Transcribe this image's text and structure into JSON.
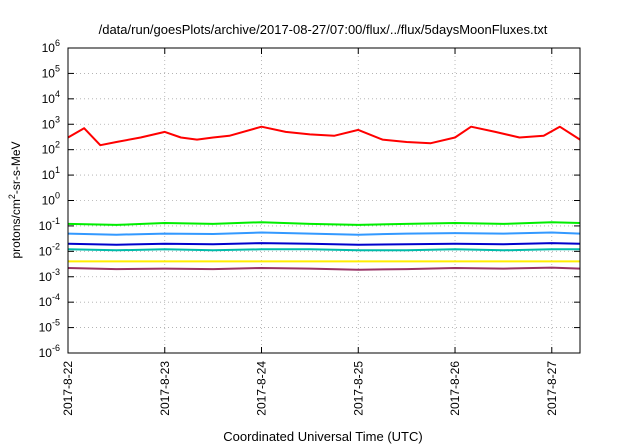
{
  "chart_data": {
    "type": "line",
    "title": "/data/run/goesPlots/archive/2017-08-27/07:00/flux/../flux/5daysMoonFluxes.txt",
    "xlabel": "Coordinated Universal Time (UTC)",
    "ylabel": {
      "prefix": "protons/cm",
      "superscript": "2",
      "suffix": "-sr-s-MeV"
    },
    "yscale": "log",
    "ylim": [
      "1e-6",
      "1e6"
    ],
    "y_ticks": [
      {
        "base": "10",
        "exp": "-6"
      },
      {
        "base": "10",
        "exp": "-5"
      },
      {
        "base": "10",
        "exp": "-4"
      },
      {
        "base": "10",
        "exp": "-3"
      },
      {
        "base": "10",
        "exp": "-2"
      },
      {
        "base": "10",
        "exp": "-1"
      },
      {
        "base": "10",
        "exp": "0"
      },
      {
        "base": "10",
        "exp": "1"
      },
      {
        "base": "10",
        "exp": "2"
      },
      {
        "base": "10",
        "exp": "3"
      },
      {
        "base": "10",
        "exp": "4"
      },
      {
        "base": "10",
        "exp": "5"
      },
      {
        "base": "10",
        "exp": "6"
      }
    ],
    "xlim": [
      "2017-08-22",
      "2017-08-27 07:00"
    ],
    "x_ticks": [
      "2017-8-22",
      "2017-8-23",
      "2017-8-24",
      "2017-8-25",
      "2017-8-26",
      "2017-8-27"
    ],
    "grid": true,
    "series": [
      {
        "color": "#ff0000",
        "x": [
          "2017-08-22 00:00",
          "2017-08-22 04:00",
          "2017-08-22 08:00",
          "2017-08-22 12:00",
          "2017-08-22 18:00",
          "2017-08-23 00:00",
          "2017-08-23 04:00",
          "2017-08-23 08:00",
          "2017-08-23 12:00",
          "2017-08-23 16:00",
          "2017-08-24 00:00",
          "2017-08-24 06:00",
          "2017-08-24 12:00",
          "2017-08-24 18:00",
          "2017-08-25 00:00",
          "2017-08-25 06:00",
          "2017-08-25 12:00",
          "2017-08-25 18:00",
          "2017-08-26 00:00",
          "2017-08-26 04:00",
          "2017-08-26 10:00",
          "2017-08-26 16:00",
          "2017-08-26 22:00",
          "2017-08-27 02:00",
          "2017-08-27 07:00"
        ],
        "values": [
          300,
          700,
          150,
          200,
          300,
          500,
          300,
          250,
          300,
          350,
          800,
          500,
          400,
          350,
          600,
          250,
          200,
          180,
          300,
          800,
          500,
          300,
          350,
          800,
          250
        ]
      },
      {
        "color": "#00ee00",
        "x": [
          "2017-08-22 00:00",
          "2017-08-22 12:00",
          "2017-08-23 00:00",
          "2017-08-23 12:00",
          "2017-08-24 00:00",
          "2017-08-24 12:00",
          "2017-08-25 00:00",
          "2017-08-25 12:00",
          "2017-08-26 00:00",
          "2017-08-26 12:00",
          "2017-08-27 00:00",
          "2017-08-27 07:00"
        ],
        "values": [
          0.12,
          0.11,
          0.13,
          0.12,
          0.14,
          0.12,
          0.11,
          0.12,
          0.13,
          0.12,
          0.14,
          0.13
        ]
      },
      {
        "color": "#3399ff",
        "x": [
          "2017-08-22 00:00",
          "2017-08-22 12:00",
          "2017-08-23 00:00",
          "2017-08-23 12:00",
          "2017-08-24 00:00",
          "2017-08-24 12:00",
          "2017-08-25 00:00",
          "2017-08-25 12:00",
          "2017-08-26 00:00",
          "2017-08-26 12:00",
          "2017-08-27 00:00",
          "2017-08-27 07:00"
        ],
        "values": [
          0.05,
          0.045,
          0.05,
          0.048,
          0.055,
          0.05,
          0.045,
          0.05,
          0.052,
          0.05,
          0.055,
          0.05
        ]
      },
      {
        "color": "#0000cc",
        "x": [
          "2017-08-22 00:00",
          "2017-08-22 12:00",
          "2017-08-23 00:00",
          "2017-08-23 12:00",
          "2017-08-24 00:00",
          "2017-08-24 12:00",
          "2017-08-25 00:00",
          "2017-08-25 12:00",
          "2017-08-26 00:00",
          "2017-08-26 12:00",
          "2017-08-27 00:00",
          "2017-08-27 07:00"
        ],
        "values": [
          0.02,
          0.018,
          0.02,
          0.019,
          0.021,
          0.02,
          0.018,
          0.019,
          0.02,
          0.019,
          0.021,
          0.02
        ]
      },
      {
        "color": "#00bbaa",
        "x": [
          "2017-08-22 00:00",
          "2017-08-22 12:00",
          "2017-08-23 00:00",
          "2017-08-23 12:00",
          "2017-08-24 00:00",
          "2017-08-24 12:00",
          "2017-08-25 00:00",
          "2017-08-25 12:00",
          "2017-08-26 00:00",
          "2017-08-26 12:00",
          "2017-08-27 00:00",
          "2017-08-27 07:00"
        ],
        "values": [
          0.012,
          0.011,
          0.012,
          0.011,
          0.012,
          0.012,
          0.011,
          0.011,
          0.012,
          0.011,
          0.012,
          0.012
        ]
      },
      {
        "color": "#ffee00",
        "x": [
          "2017-08-22 00:00",
          "2017-08-27 07:00"
        ],
        "values": [
          0.004,
          0.004
        ]
      },
      {
        "color": "#993366",
        "x": [
          "2017-08-22 00:00",
          "2017-08-22 12:00",
          "2017-08-23 00:00",
          "2017-08-23 12:00",
          "2017-08-24 00:00",
          "2017-08-24 12:00",
          "2017-08-25 00:00",
          "2017-08-25 12:00",
          "2017-08-26 00:00",
          "2017-08-26 12:00",
          "2017-08-27 00:00",
          "2017-08-27 07:00"
        ],
        "values": [
          0.0022,
          0.002,
          0.0021,
          0.002,
          0.0022,
          0.0021,
          0.0019,
          0.002,
          0.0022,
          0.0021,
          0.0023,
          0.0021
        ]
      }
    ]
  }
}
